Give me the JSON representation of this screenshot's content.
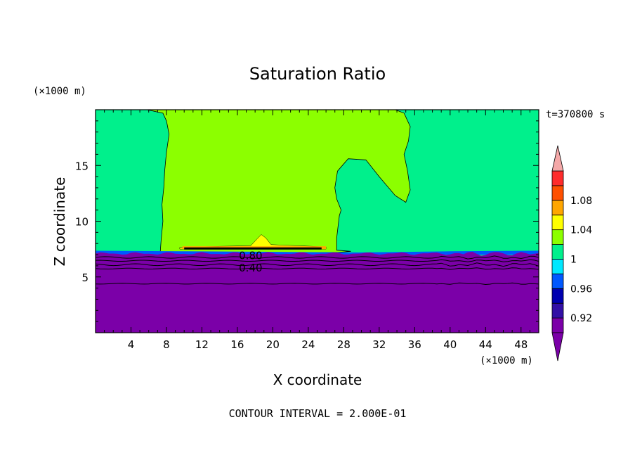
{
  "chart_data": {
    "type": "heatmap",
    "title": "Saturation Ratio",
    "xlabel": "X coordinate",
    "ylabel": "Z coordinate",
    "x_unit": "(×1000 m)",
    "y_unit": "(×1000 m)",
    "xlim": [
      0,
      50
    ],
    "ylim": [
      0,
      20
    ],
    "x_ticks": [
      4,
      8,
      12,
      16,
      20,
      24,
      28,
      32,
      36,
      40,
      44,
      48
    ],
    "y_ticks": [
      5,
      10,
      15
    ],
    "time_label": "t=370800 s",
    "footer": "CONTOUR INTERVAL = 2.000E-01",
    "contour_labels": [
      {
        "text": "0.80",
        "x": 17.5,
        "z": 6.9
      },
      {
        "text": "0.40",
        "x": 17.5,
        "z": 5.8
      }
    ],
    "colorbar": {
      "labels": [
        "1.08",
        "1.04",
        "1",
        "0.96",
        "0.92"
      ],
      "levels": [
        0.9,
        0.92,
        0.94,
        0.96,
        0.98,
        1.0,
        1.02,
        1.04,
        1.06,
        1.08,
        1.1
      ],
      "colors": [
        "#7b00a8",
        "#3310a6",
        "#0000b0",
        "#0058ff",
        "#00e8ff",
        "#00f08c",
        "#8cff00",
        "#ffff00",
        "#ffa600",
        "#ff5000",
        "#ff2c2c"
      ],
      "under_color": "#7b00a8",
      "over_color": "#f4a8a8"
    },
    "colors": {
      "dry": "#7b00a8",
      "moist": "#00f08c",
      "saturated": "#8cff00",
      "supersat": "#ffff00",
      "orange": "#ffa600"
    }
  }
}
